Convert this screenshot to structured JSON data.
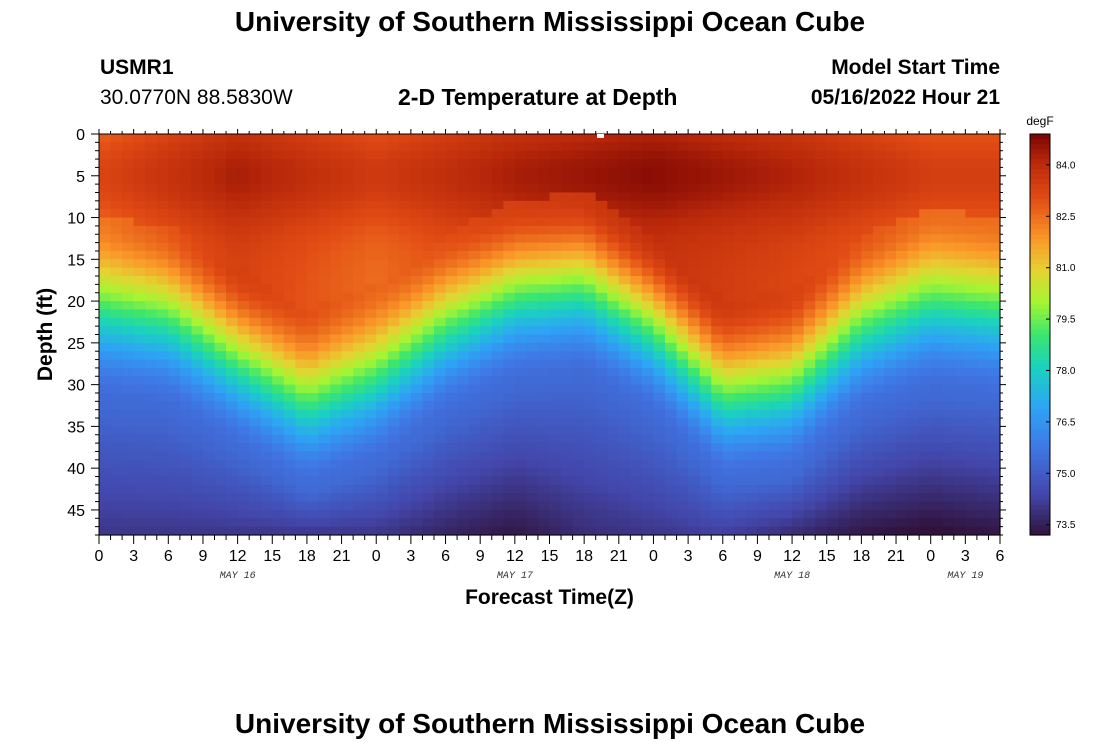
{
  "header": {
    "title_top": "University of Southern Mississippi Ocean Cube",
    "station": "USMR1",
    "coords": "30.0770N  88.5830W",
    "subtitle": "2-D Temperature at Depth",
    "model_start_label": "Model Start Time",
    "model_start_value": "05/16/2022 Hour 21",
    "title_bottom": "University of Southern Mississippi Ocean Cube"
  },
  "chart_data": {
    "type": "heatmap",
    "title": "2-D Temperature at Depth",
    "xlabel": "Forecast Time(Z)",
    "ylabel": "Depth (ft)",
    "x_tick_labels": [
      "0",
      "3",
      "6",
      "9",
      "12",
      "15",
      "18",
      "21",
      "0",
      "3",
      "6",
      "9",
      "12",
      "15",
      "18",
      "21",
      "0",
      "3",
      "6",
      "9",
      "12",
      "15",
      "18",
      "21",
      "0",
      "3",
      "6"
    ],
    "date_labels": [
      {
        "text": "MAY 16",
        "hour": 12
      },
      {
        "text": "MAY 17",
        "hour": 36
      },
      {
        "text": "MAY 18",
        "hour": 60
      },
      {
        "text": "MAY 19",
        "hour": 75
      }
    ],
    "xlim_hours": [
      0,
      78
    ],
    "y_ticks": [
      0,
      5,
      10,
      15,
      20,
      25,
      30,
      35,
      40,
      45
    ],
    "ylim": [
      0,
      48
    ],
    "colorbar": {
      "unit": "degF",
      "ticks": [
        "84.0",
        "82.5",
        "81.0",
        "79.5",
        "78.0",
        "76.5",
        "75.0",
        "73.5"
      ],
      "range": [
        73.2,
        84.9
      ]
    },
    "thermocline_depth_ft": [
      {
        "hour": 0,
        "depth": 19
      },
      {
        "hour": 6,
        "depth": 20
      },
      {
        "hour": 12,
        "depth": 25
      },
      {
        "hour": 18,
        "depth": 30
      },
      {
        "hour": 24,
        "depth": 27
      },
      {
        "hour": 30,
        "depth": 21
      },
      {
        "hour": 36,
        "depth": 17
      },
      {
        "hour": 42,
        "depth": 16
      },
      {
        "hour": 48,
        "depth": 21
      },
      {
        "hour": 54,
        "depth": 29
      },
      {
        "hour": 60,
        "depth": 28
      },
      {
        "hour": 66,
        "depth": 21
      },
      {
        "hour": 72,
        "depth": 18
      },
      {
        "hour": 78,
        "depth": 19
      }
    ],
    "surface_max_temp_degF": [
      {
        "hour": 0,
        "temp": 83.2
      },
      {
        "hour": 12,
        "temp": 84.3
      },
      {
        "hour": 24,
        "temp": 83.5
      },
      {
        "hour": 36,
        "temp": 84.3
      },
      {
        "hour": 48,
        "temp": 84.7
      },
      {
        "hour": 60,
        "temp": 84.2
      },
      {
        "hour": 72,
        "temp": 83.4
      },
      {
        "hour": 78,
        "temp": 83.4
      }
    ],
    "bottom_temp_degF": [
      {
        "hour": 0,
        "temp": 74.0
      },
      {
        "hour": 24,
        "temp": 74.0
      },
      {
        "hour": 30,
        "temp": 73.6
      },
      {
        "hour": 36,
        "temp": 73.3
      },
      {
        "hour": 42,
        "temp": 73.8
      },
      {
        "hour": 54,
        "temp": 74.2
      },
      {
        "hour": 66,
        "temp": 73.3
      },
      {
        "hour": 72,
        "temp": 73.1
      },
      {
        "hour": 78,
        "temp": 73.3
      }
    ]
  }
}
